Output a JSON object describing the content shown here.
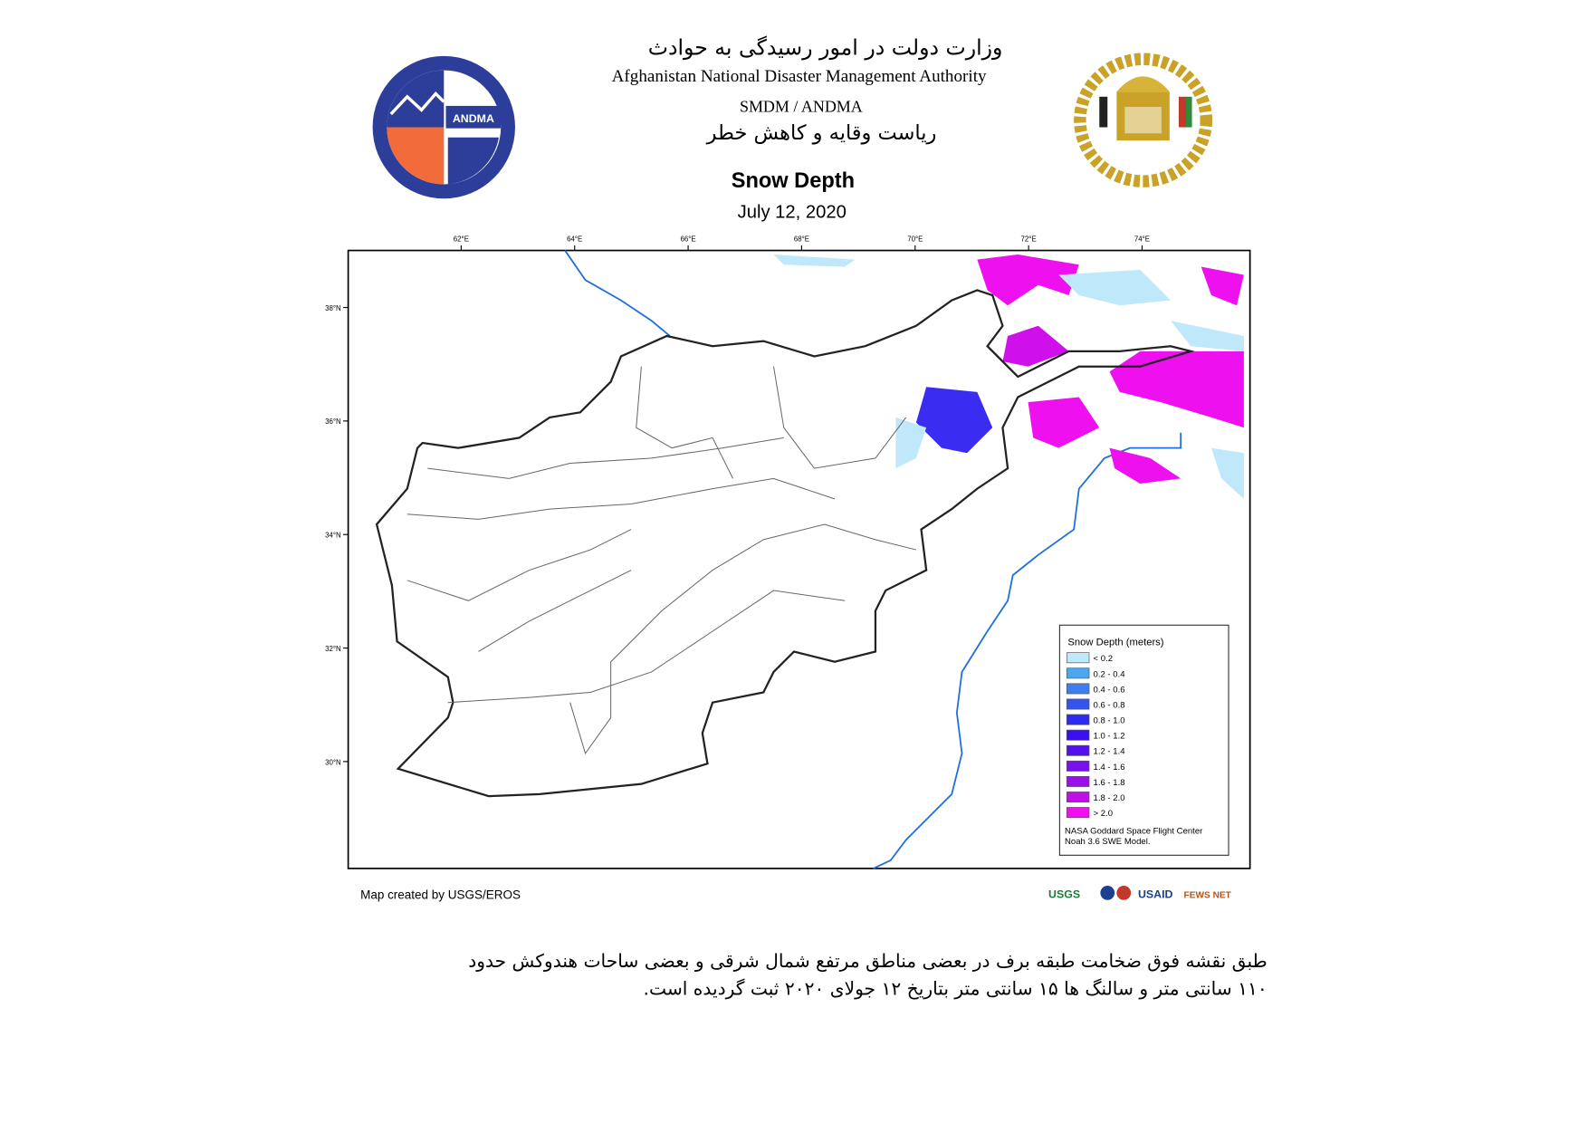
{
  "header": {
    "title_fa": "وزارت دولت در امور رسیدگی به حوادث",
    "title_en": "Afghanistan National Disaster Management Authority",
    "unit": "SMDM / ANDMA",
    "subtitle_fa": "ریاست وقایه و کاهش خطر",
    "logo_text": "ANDMA"
  },
  "map": {
    "title": "Snow Depth",
    "date": "July 12, 2020",
    "lon_ticks": [
      "62°E",
      "64°E",
      "66°E",
      "68°E",
      "70°E",
      "72°E",
      "74°E"
    ],
    "lat_ticks": [
      "38°N",
      "36°N",
      "34°N",
      "32°N",
      "30°N"
    ],
    "legend": {
      "title": "Snow Depth (meters)",
      "items": [
        {
          "label": "< 0.2",
          "color": "#bfe8fa"
        },
        {
          "label": "0.2 - 0.4",
          "color": "#4ba8f0"
        },
        {
          "label": "0.4 - 0.6",
          "color": "#3b7ff0"
        },
        {
          "label": "0.6 - 0.8",
          "color": "#3355ee"
        },
        {
          "label": "0.8 - 1.0",
          "color": "#2b2cf0"
        },
        {
          "label": "1.0 - 1.2",
          "color": "#3a10f0"
        },
        {
          "label": "1.2 - 1.4",
          "color": "#5510ee"
        },
        {
          "label": "1.4 - 1.6",
          "color": "#7a10ec"
        },
        {
          "label": "1.6 - 1.8",
          "color": "#9a10ea"
        },
        {
          "label": "1.8 - 2.0",
          "color": "#c010ea"
        },
        {
          "label": "> 2.0",
          "color": "#ee10ee"
        }
      ],
      "source": [
        "NASA Goddard Space Flight Center",
        "Noah 3.6 SWE Model."
      ]
    },
    "credit": "Map created by USGS/EROS",
    "logos": [
      "USGS",
      "USAID",
      "FEWS NET"
    ]
  },
  "footer": {
    "lines": [
      "طبق نقشه فوق ضخامت طبقه برف در بعضی مناطق مرتفع شمال شرقی و بعضی ساحات هندوکش حدود",
      "۱۱۰ سانتی متر و سالنگ ها ۱۵ سانتی متر بتاریخ ۱۲ جولای ۲۰۲۰ ثبت گردیده است."
    ]
  }
}
